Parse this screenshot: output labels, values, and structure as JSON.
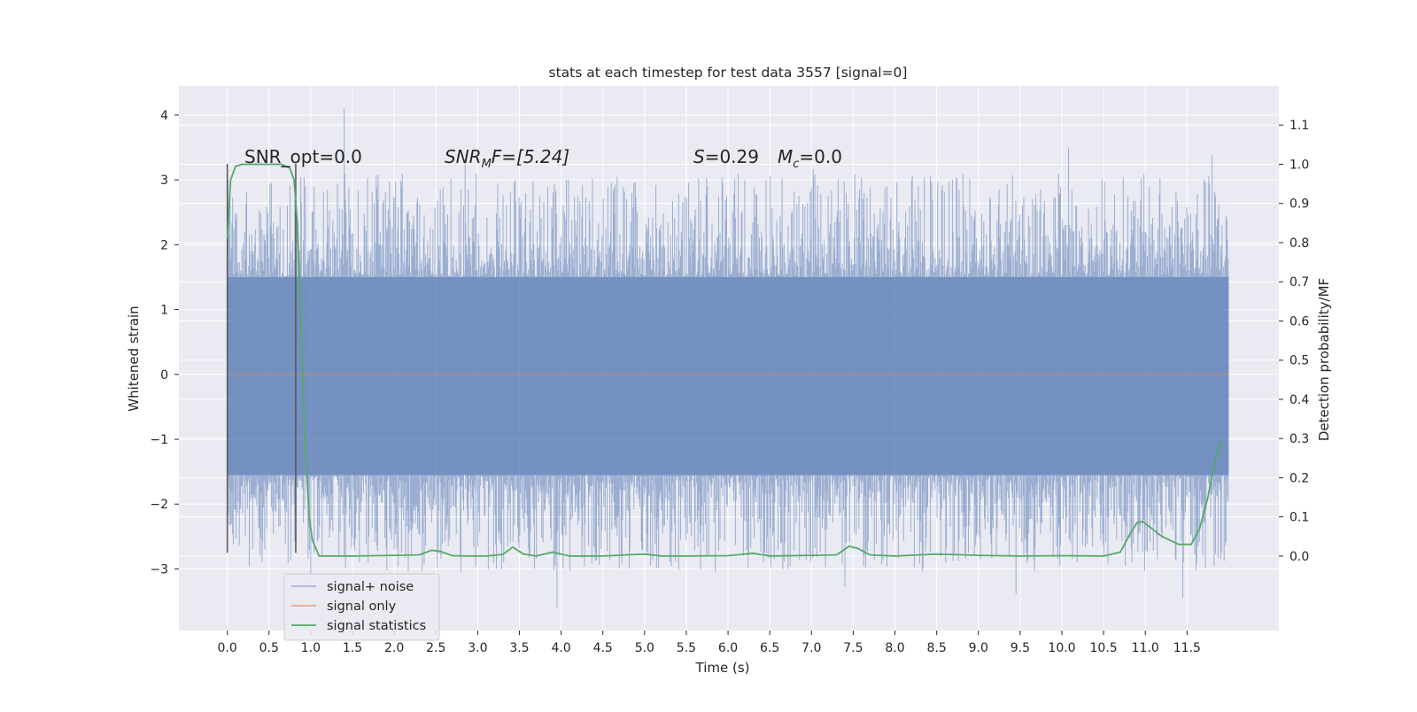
{
  "chart_data": {
    "type": "line",
    "title": "stats at each timestep for test data 3557 [signal=0]",
    "xlabel": "Time (s)",
    "ylabel_left": "Whitened strain",
    "ylabel_right": "Detection probability/MF",
    "xlim": [
      -0.58,
      12.6
    ],
    "ylim_left": [
      -3.95,
      4.45
    ],
    "ylim_right": [
      -0.19,
      1.2
    ],
    "x_ticks": [
      "0.0",
      "0.5",
      "1.0",
      "1.5",
      "2.0",
      "2.5",
      "3.0",
      "3.5",
      "4.0",
      "4.5",
      "5.0",
      "5.5",
      "6.0",
      "6.5",
      "7.0",
      "7.5",
      "8.0",
      "8.5",
      "9.0",
      "9.5",
      "10.0",
      "10.5",
      "11.0",
      "11.5"
    ],
    "y_ticks_left": [
      "4",
      "3",
      "2",
      "1",
      "0",
      "−1",
      "−2",
      "−3"
    ],
    "y_ticks_right": [
      "1.1",
      "1.0",
      "0.9",
      "0.8",
      "0.7",
      "0.6",
      "0.5",
      "0.4",
      "0.3",
      "0.2",
      "0.1",
      "0.0"
    ],
    "grid": true,
    "legend_position": "lower-left",
    "colors": {
      "background": "#eaeaf2",
      "grid": "#ffffff",
      "noise": "#4c72b0",
      "signal_only": "#dd8452",
      "statistics": "#55a868",
      "marker": "#555555"
    },
    "annotations": {
      "snr_opt": "SNR_opt=0.0",
      "snr_mf_base": "SNR",
      "snr_mf_sub": "M",
      "snr_mf_rest": "F=[5.24]",
      "s_label": "S",
      "s_value": "=0.29",
      "mc_label": "M",
      "mc_sub": "c",
      "mc_value": "=0.0"
    },
    "markers_x": [
      0.0,
      0.82
    ],
    "series": [
      {
        "name": "signal+ noise",
        "axis": "left",
        "style": "noise-band",
        "x_range": [
          0.0,
          12.0
        ],
        "core_range": [
          -1.55,
          1.5
        ],
        "peaks": [
          [
            1.4,
            4.1
          ],
          [
            10.08,
            3.5
          ],
          [
            11.8,
            3.38
          ],
          [
            2.85,
            3.27
          ],
          [
            7.02,
            3.17
          ]
        ],
        "troughs": [
          [
            3.95,
            -3.6
          ],
          [
            11.45,
            -3.45
          ],
          [
            9.45,
            -3.38
          ],
          [
            7.4,
            -3.28
          ],
          [
            1.0,
            -3.2
          ]
        ]
      },
      {
        "name": "signal only",
        "axis": "left",
        "x": [
          0.0,
          12.0
        ],
        "y": [
          0.0,
          0.0
        ]
      },
      {
        "name": "signal statistics",
        "axis": "right",
        "x": [
          0.0,
          0.04,
          0.1,
          0.18,
          0.3,
          0.5,
          0.65,
          0.75,
          0.8,
          0.84,
          0.88,
          0.93,
          0.98,
          1.02,
          1.1,
          1.5,
          2.0,
          2.3,
          2.45,
          2.55,
          2.7,
          2.9,
          3.1,
          3.3,
          3.42,
          3.55,
          3.7,
          3.9,
          4.1,
          4.5,
          5.0,
          5.2,
          5.5,
          6.0,
          6.3,
          6.5,
          7.0,
          7.3,
          7.45,
          7.55,
          7.7,
          8.0,
          8.5,
          9.0,
          9.5,
          10.0,
          10.5,
          10.7,
          10.8,
          10.9,
          10.97,
          11.05,
          11.2,
          11.4,
          11.55,
          11.65,
          11.75,
          11.82,
          11.9,
          11.95
        ],
        "y": [
          0.81,
          0.96,
          0.995,
          1.0,
          1.0,
          1.0,
          1.0,
          0.99,
          0.96,
          0.85,
          0.6,
          0.3,
          0.1,
          0.04,
          0.0,
          0.0,
          0.002,
          0.003,
          0.015,
          0.012,
          0.001,
          0.0,
          0.0,
          0.004,
          0.023,
          0.005,
          0.0,
          0.01,
          0.0,
          0.0,
          0.005,
          0.0,
          0.0,
          0.001,
          0.007,
          0.0,
          0.002,
          0.003,
          0.025,
          0.02,
          0.003,
          0.0,
          0.005,
          0.002,
          0.0,
          0.001,
          0.0,
          0.01,
          0.05,
          0.085,
          0.088,
          0.075,
          0.05,
          0.03,
          0.03,
          0.07,
          0.15,
          0.23,
          0.29,
          0.285
        ]
      }
    ]
  }
}
